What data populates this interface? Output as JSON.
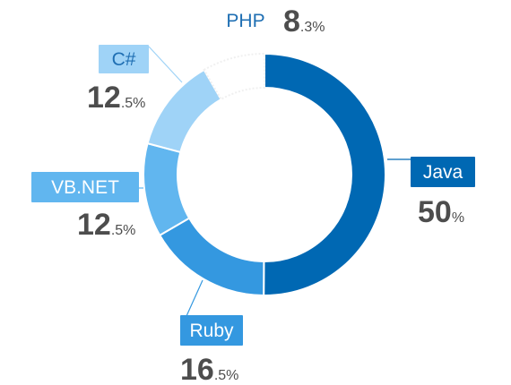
{
  "chart_data": {
    "type": "pie",
    "title": "",
    "slices": [
      {
        "label": "Java",
        "value": 50.0,
        "int": "50",
        "dec": "",
        "color": "#0068b3",
        "text_color": "#ffffff"
      },
      {
        "label": "Ruby",
        "value": 16.5,
        "int": "16",
        "dec": ".5",
        "color": "#3498e0",
        "text_color": "#ffffff"
      },
      {
        "label": "VB.NET",
        "value": 12.5,
        "int": "12",
        "dec": ".5",
        "color": "#61b6ef",
        "text_color": "#ffffff"
      },
      {
        "label": "C#",
        "value": 12.5,
        "int": "12",
        "dec": ".5",
        "color": "#9fd3f7",
        "text_color": "#1f6fb3"
      },
      {
        "label": "PHP",
        "value": 8.3,
        "int": "8",
        "dec": ".3",
        "color": "#ffffff",
        "text_color": "#1f6fb3"
      }
    ],
    "unit": "%"
  }
}
